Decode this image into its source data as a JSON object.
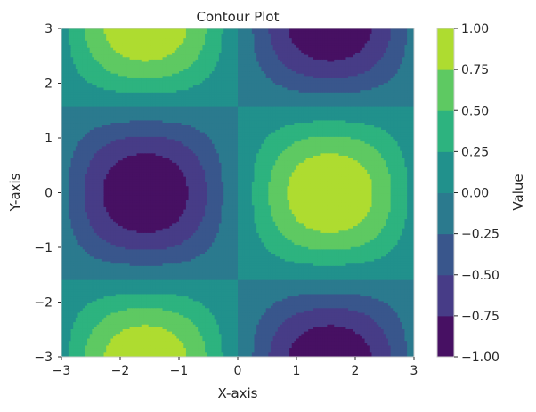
{
  "chart_data": {
    "type": "contour",
    "title": "Contour Plot",
    "xlabel": "X-axis",
    "ylabel": "Y-axis",
    "xlim": [
      -3,
      3
    ],
    "ylim": [
      -3,
      3
    ],
    "function": "sin(x) * cos(y)",
    "xticks": [
      -3,
      -2,
      -1,
      0,
      1,
      2,
      3
    ],
    "yticks": [
      -3,
      -2,
      -1,
      0,
      1,
      2,
      3
    ],
    "xtick_labels": [
      "−3",
      "−2",
      "−1",
      "0",
      "1",
      "2",
      "3"
    ],
    "ytick_labels": [
      "−3",
      "−2",
      "−1",
      "0",
      "1",
      "2",
      "3"
    ],
    "levels": [
      -1.0,
      -0.75,
      -0.5,
      -0.25,
      0.0,
      0.25,
      0.5,
      0.75,
      1.0
    ],
    "level_labels": [
      "−1.00",
      "−0.75",
      "−0.50",
      "−0.25",
      "0.00",
      "0.25",
      "0.50",
      "0.75",
      "1.00"
    ],
    "colors": [
      "#471063",
      "#473c87",
      "#39568c",
      "#2b7a8e",
      "#21918c",
      "#2db37f",
      "#5ec962",
      "#aedc30",
      "#dde318"
    ],
    "colormap": "viridis",
    "colorbar_label": "Value",
    "grid": false
  }
}
